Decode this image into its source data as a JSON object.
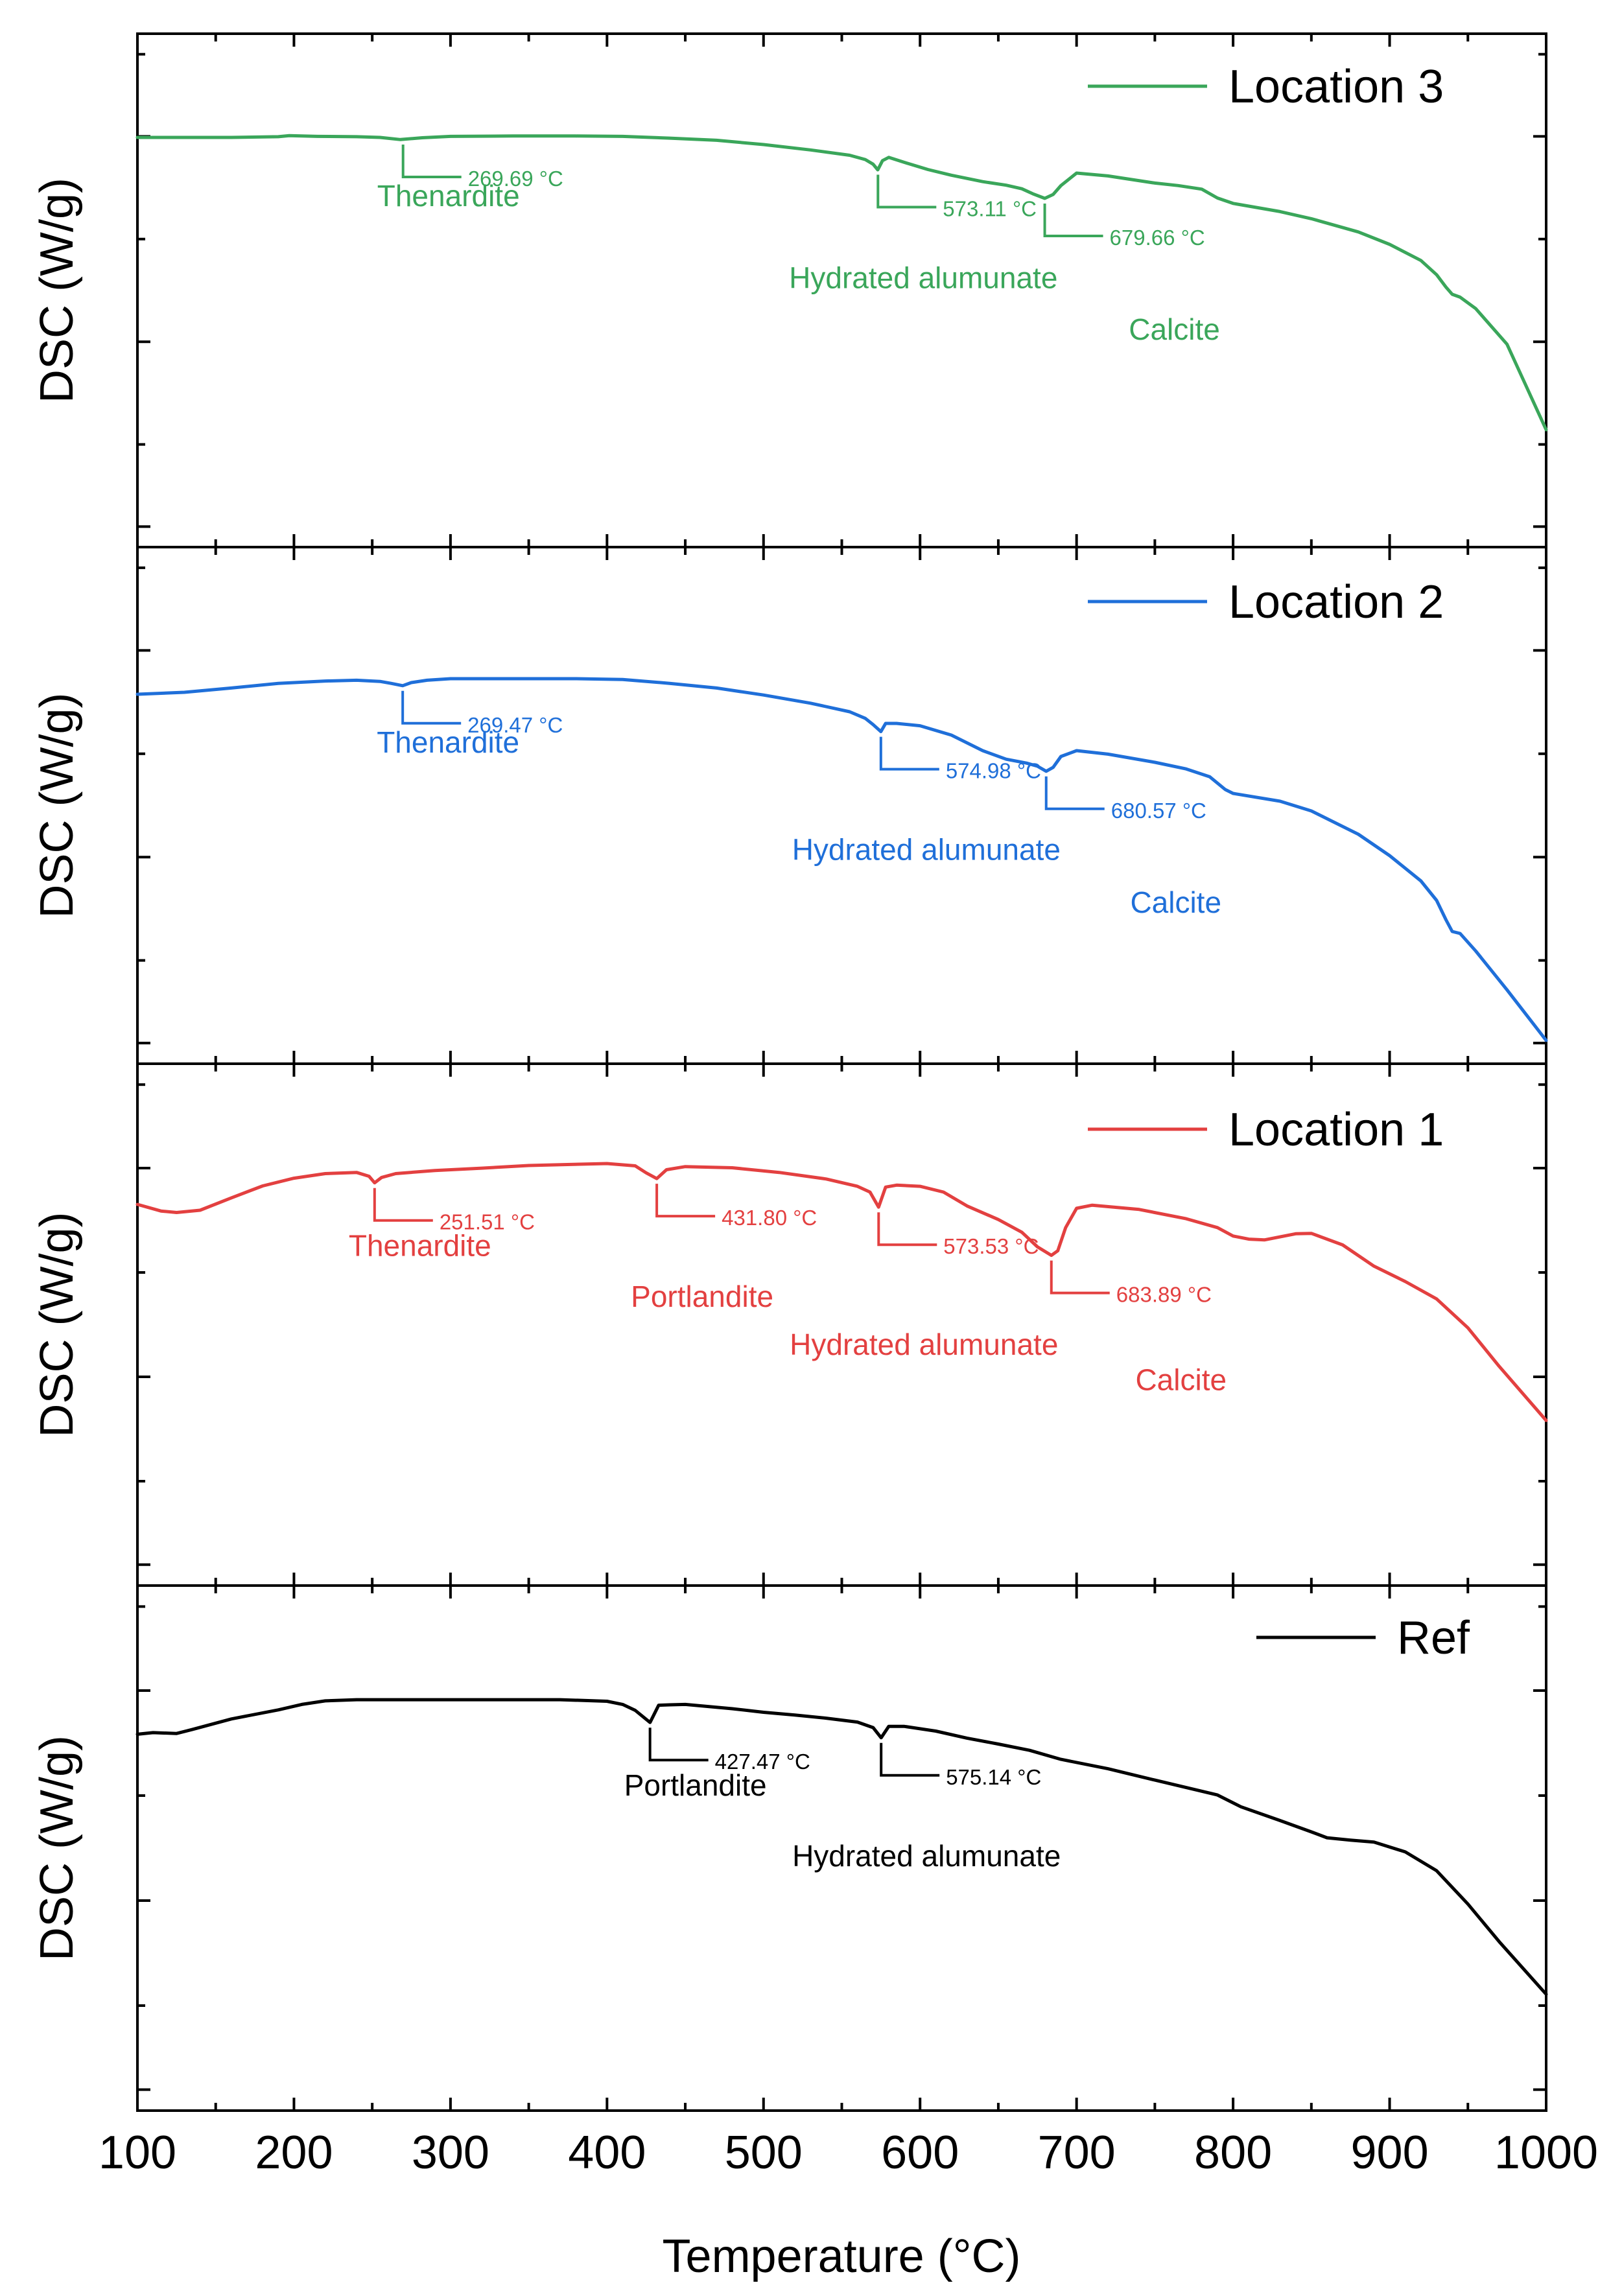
{
  "chart_data": {
    "type": "line",
    "xlabel": "Temperature (°C)",
    "xlim": [
      100,
      1000
    ],
    "x_ticks": [
      "100",
      "200",
      "300",
      "400",
      "500",
      "600",
      "700",
      "800",
      "900",
      "1000"
    ],
    "panels": [
      {
        "id": "location-3",
        "legend": "Location 3",
        "color": "#3aa65a",
        "ylabel": "DSC (W/g)",
        "ylim": [
          0,
          100
        ],
        "x": [
          100,
          130,
          160,
          190,
          197,
          215,
          240,
          255,
          268,
          282,
          300,
          340,
          380,
          410,
          440,
          470,
          500,
          530,
          555,
          565,
          570,
          573,
          576,
          580,
          590,
          605,
          620,
          640,
          655,
          665,
          672,
          679.66,
          685,
          690,
          700,
          720,
          750,
          765,
          780,
          790,
          800,
          830,
          850,
          880,
          900,
          920,
          930,
          936,
          940,
          945,
          955,
          975,
          1000
        ],
        "y": [
          96,
          96,
          96,
          96.2,
          96.5,
          96.3,
          96.2,
          96,
          95.4,
          95.9,
          96.3,
          96.4,
          96.4,
          96.3,
          95.8,
          95.2,
          94,
          92.5,
          91,
          89.8,
          88.5,
          86.9,
          89.5,
          90.4,
          89,
          87,
          85.4,
          83.6,
          82.6,
          81.6,
          80.2,
          78.9,
          80,
          82.5,
          86,
          85.2,
          83.2,
          82.5,
          81.5,
          79,
          77.5,
          75.2,
          73.2,
          69.5,
          66,
          61.5,
          57.5,
          54,
          52,
          51.2,
          48,
          38,
          14
        ],
        "annotations": [
          {
            "x": 269.69,
            "temp_label": "269.69 °C",
            "name": "Thenardite"
          },
          {
            "x": 573.11,
            "temp_label": "573.11 °C",
            "name": "Hydrated alumunate"
          },
          {
            "x": 679.66,
            "temp_label": "679.66 °C",
            "name": "Calcite"
          }
        ]
      },
      {
        "id": "location-2",
        "legend": "Location 2",
        "color": "#1f6fd9",
        "ylabel": "DSC (W/g)",
        "ylim": [
          0,
          100
        ],
        "x": [
          100,
          130,
          160,
          190,
          220,
          240,
          255,
          262,
          269.47,
          275,
          285,
          300,
          340,
          380,
          410,
          440,
          470,
          500,
          530,
          555,
          565,
          570,
          574.98,
          578,
          585,
          600,
          620,
          640,
          655,
          668,
          675,
          680.57,
          685,
          690,
          700,
          720,
          750,
          770,
          785,
          795,
          800,
          830,
          850,
          880,
          900,
          920,
          930,
          936,
          940,
          945,
          955,
          975,
          1000
        ],
        "y": [
          79,
          79.5,
          80.6,
          81.8,
          82.4,
          82.6,
          82.3,
          81.8,
          81.2,
          82,
          82.6,
          83,
          83,
          83,
          82.8,
          81.8,
          80.6,
          78.8,
          76.7,
          74.5,
          72.8,
          71.2,
          69.4,
          71.5,
          71.5,
          70.9,
          68.5,
          64.5,
          62.3,
          61.3,
          60.5,
          59.2,
          60.2,
          63,
          64.5,
          63.6,
          61.5,
          59.8,
          57.8,
          54.5,
          53.5,
          51.5,
          49,
          43,
          37.5,
          31,
          26,
          21,
          18,
          17.5,
          13,
          3,
          -10
        ],
        "annotations": [
          {
            "x": 269.47,
            "temp_label": "269.47 °C",
            "name": "Thenardite"
          },
          {
            "x": 574.98,
            "temp_label": "574.98 °C",
            "name": "Hydrated alumunate"
          },
          {
            "x": 680.57,
            "temp_label": "680.57 °C",
            "name": "Calcite"
          }
        ]
      },
      {
        "id": "location-1",
        "legend": "Location 1",
        "color": "#e34040",
        "ylabel": "DSC (W/g)",
        "ylim": [
          0,
          100
        ],
        "x": [
          100,
          115,
          125,
          140,
          160,
          180,
          200,
          220,
          240,
          248,
          251.51,
          256,
          265,
          290,
          320,
          350,
          400,
          418,
          425,
          431.8,
          438,
          450,
          480,
          510,
          540,
          560,
          568,
          573.53,
          578,
          585,
          600,
          615,
          630,
          650,
          665,
          675,
          683.89,
          688,
          693,
          700,
          710,
          740,
          770,
          790,
          800,
          810,
          820,
          840,
          850,
          870,
          890,
          910,
          930,
          950,
          970,
          1000
        ],
        "y": [
          81,
          79.3,
          78.9,
          79.5,
          82.7,
          85.8,
          87.8,
          89,
          89.3,
          88.3,
          86.6,
          88,
          89,
          89.8,
          90.4,
          91.1,
          91.6,
          91,
          89.2,
          87.7,
          90,
          90.8,
          90.5,
          89.3,
          87.6,
          85.7,
          84.2,
          80.3,
          85.5,
          86,
          85.7,
          84.2,
          80.6,
          77.1,
          73.8,
          70,
          67.8,
          69,
          75,
          80,
          80.8,
          79.7,
          77.3,
          75,
          72.8,
          72,
          71.8,
          73.4,
          73.5,
          70.5,
          65,
          61,
          56.5,
          49,
          39,
          25
        ],
        "annotations": [
          {
            "x": 251.51,
            "temp_label": "251.51 °C",
            "name": "Thenardite"
          },
          {
            "x": 431.8,
            "temp_label": "431.80 °C",
            "name": "Portlandite"
          },
          {
            "x": 573.53,
            "temp_label": "573.53 °C",
            "name": "Hydrated alumunate"
          },
          {
            "x": 683.89,
            "temp_label": "683.89 °C",
            "name": "Calcite"
          }
        ]
      },
      {
        "id": "ref",
        "legend": "Ref",
        "color": "#000000",
        "ylabel": "DSC (W/g)",
        "ylim": [
          0,
          100
        ],
        "x": [
          100,
          110,
          125,
          135,
          160,
          190,
          205,
          220,
          240,
          300,
          340,
          370,
          400,
          410,
          418,
          427.47,
          433,
          440,
          450,
          480,
          500,
          520,
          540,
          560,
          570,
          575.14,
          580,
          590,
          610,
          630,
          650,
          670,
          690,
          720,
          750,
          770,
          790,
          805,
          830,
          850,
          860,
          875,
          890,
          910,
          930,
          950,
          970,
          1000
        ],
        "y": [
          76.8,
          77.2,
          77,
          78,
          80.7,
          83,
          84.4,
          85.3,
          85.6,
          85.6,
          85.6,
          85.6,
          85.2,
          84.4,
          82.9,
          79.8,
          84.2,
          84.3,
          84.4,
          83.3,
          82.4,
          81.7,
          80.9,
          79.9,
          78.5,
          75.9,
          78.8,
          78.8,
          77.6,
          75.8,
          74.3,
          72.7,
          70.4,
          68,
          65.1,
          63.2,
          61.3,
          58.3,
          54.8,
          51.9,
          50.4,
          49.8,
          49.3,
          46.8,
          42,
          33.5,
          23.9,
          10.5
        ],
        "annotations": [
          {
            "x": 427.47,
            "temp_label": "427.47 °C",
            "name": "Portlandite"
          },
          {
            "x": 575.14,
            "temp_label": "575.14 °C",
            "name": "Hydrated alumunate"
          }
        ]
      }
    ]
  }
}
